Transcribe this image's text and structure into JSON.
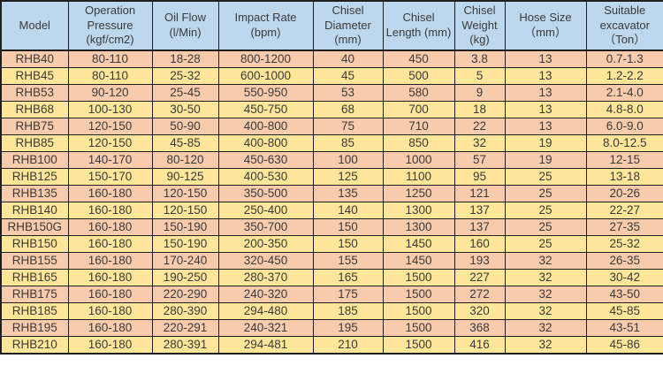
{
  "colors": {
    "header_bg": "#BDD7EE",
    "row_odd_bg": "#F8CBAD",
    "row_even_bg": "#FFE699",
    "border": "#1f1f1f",
    "text": "#3a3a3a"
  },
  "chart_data": {
    "type": "table",
    "columns": [
      "Model",
      "Operation Pressure (kgf/cm2)",
      "Oil Flow (l/Min)",
      "Impact Rate (bpm)",
      "Chisel Diameter (mm)",
      "Chisel Length (mm)",
      "Chisel Weight (kg)",
      "Hose Size （mm）",
      "Suitable excavator （Ton）"
    ],
    "rows": [
      [
        "RHB40",
        "80-110",
        "18-28",
        "800-1200",
        "40",
        "450",
        "3.8",
        "13",
        "0.7-1.3"
      ],
      [
        "RHB45",
        "80-110",
        "25-32",
        "600-1000",
        "45",
        "500",
        "5",
        "13",
        "1.2-2.2"
      ],
      [
        "RHB53",
        "90-120",
        "25-45",
        "550-950",
        "53",
        "580",
        "9",
        "13",
        "2.1-4.0"
      ],
      [
        "RHB68",
        "100-130",
        "30-50",
        "450-750",
        "68",
        "700",
        "18",
        "13",
        "4.8-8.0"
      ],
      [
        "RHB75",
        "120-150",
        "50-90",
        "400-800",
        "75",
        "710",
        "22",
        "13",
        "6.0-9.0"
      ],
      [
        "RHB85",
        "120-150",
        "45-85",
        "400-800",
        "85",
        "850",
        "32",
        "19",
        "8.0-12.5"
      ],
      [
        "RHB100",
        "140-170",
        "80-120",
        "450-630",
        "100",
        "1000",
        "57",
        "19",
        "12-15"
      ],
      [
        "RHB125",
        "150-170",
        "90-125",
        "400-530",
        "125",
        "1100",
        "95",
        "25",
        "13-18"
      ],
      [
        "RHB135",
        "160-180",
        "120-150",
        "350-500",
        "135",
        "1250",
        "121",
        "25",
        "20-26"
      ],
      [
        "RHB140",
        "160-180",
        "120-150",
        "250-400",
        "140",
        "1300",
        "137",
        "25",
        "22-27"
      ],
      [
        "RHB150G",
        "160-180",
        "150-190",
        "350-700",
        "150",
        "1300",
        "137",
        "25",
        "27-35"
      ],
      [
        "RHB150",
        "160-180",
        "150-190",
        "200-350",
        "150",
        "1450",
        "160",
        "25",
        "25-32"
      ],
      [
        "RHB155",
        "160-180",
        "170-240",
        "320-450",
        "155",
        "1450",
        "193",
        "32",
        "26-35"
      ],
      [
        "RHB165",
        "160-180",
        "190-250",
        "280-370",
        "165",
        "1500",
        "227",
        "32",
        "30-42"
      ],
      [
        "RHB175",
        "160-180",
        "220-290",
        "240-320",
        "175",
        "1500",
        "272",
        "32",
        "43-50"
      ],
      [
        "RHB185",
        "160-180",
        "280-390",
        "294-480",
        "185",
        "1500",
        "320",
        "32",
        "45-85"
      ],
      [
        "RHB195",
        "160-180",
        "220-291",
        "240-321",
        "195",
        "1500",
        "368",
        "32",
        "43-51"
      ],
      [
        "RHB210",
        "160-180",
        "280-391",
        "294-481",
        "210",
        "1500",
        "416",
        "32",
        "45-86"
      ]
    ]
  }
}
